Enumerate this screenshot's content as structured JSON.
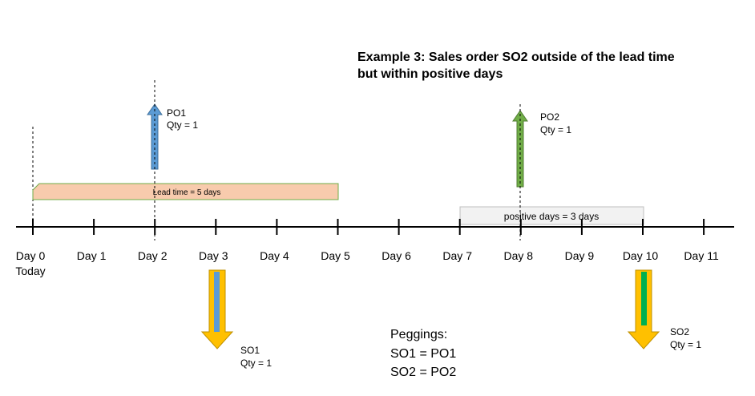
{
  "title": {
    "line1": "Example 3: Sales order SO2 outside of the lead time",
    "line2": "but within positive days"
  },
  "timeline": {
    "days": [
      "Day 0",
      "Day 1",
      "Day 2",
      "Day 3",
      "Day 4",
      "Day 5",
      "Day 6",
      "Day 7",
      "Day 8",
      "Day 9",
      "Day 10",
      "Day 11"
    ],
    "today_label": "Today"
  },
  "lead_time_bar": {
    "label": "Lead time = 5 days",
    "start_day": 0,
    "end_day": 5,
    "fill": "#f8cbad",
    "stroke": "#70ad47"
  },
  "positive_days_bar": {
    "label": "positive days = 3 days",
    "start_day": 7,
    "end_day": 10,
    "fill": "#f2f2f2",
    "stroke": "#bfbfbf"
  },
  "purchase_orders": [
    {
      "name": "PO1",
      "qty": "Qty = 1",
      "day": 2,
      "color": "#5b9bd5"
    },
    {
      "name": "PO2",
      "qty": "Qty = 1",
      "day": 8,
      "color": "#70ad47"
    }
  ],
  "sales_orders": [
    {
      "name": "SO1",
      "qty": "Qty = 1",
      "day": 3,
      "color": "#ffc000",
      "inner_color": "#5b9bd5"
    },
    {
      "name": "SO2",
      "qty": "Qty = 1",
      "day": 10,
      "color": "#ffc000",
      "inner_color": "#00b050"
    }
  ],
  "peggings": {
    "title": "Peggings:",
    "lines": [
      "SO1 = PO1",
      "SO2 = PO2"
    ]
  }
}
